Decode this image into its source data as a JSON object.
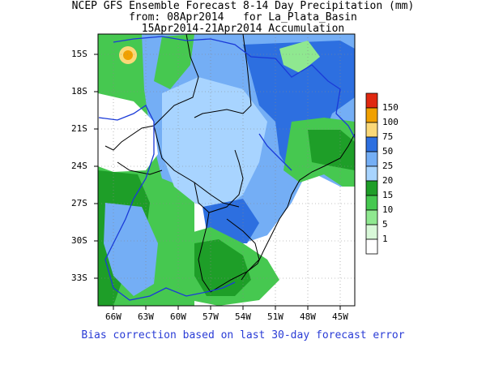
{
  "title": {
    "line1": "NCEP GFS Ensemble Forecast 8-14 Day Precipitation (mm)",
    "line2": "from: 08Apr2014   for La_Plata_Basin",
    "line3": "15Apr2014-21Apr2014 Accumulation"
  },
  "axes": {
    "lat_labels": [
      "15S",
      "18S",
      "21S",
      "24S",
      "27S",
      "30S",
      "33S"
    ],
    "lon_labels": [
      "66W",
      "63W",
      "60W",
      "57W",
      "54W",
      "51W",
      "48W",
      "45W"
    ]
  },
  "legend": {
    "labels": [
      "150",
      "100",
      "75",
      "50",
      "25",
      "20",
      "15",
      "10",
      "5",
      "1"
    ],
    "colors": [
      "#e02810",
      "#f0a000",
      "#fad878",
      "#2d6fe0",
      "#74aef5",
      "#a8d4ff",
      "#1e9e28",
      "#46c850",
      "#8fe890",
      "#d8f8d8",
      "#ffffff"
    ]
  },
  "footer": "Bias correction based on last 30-day forecast error"
}
